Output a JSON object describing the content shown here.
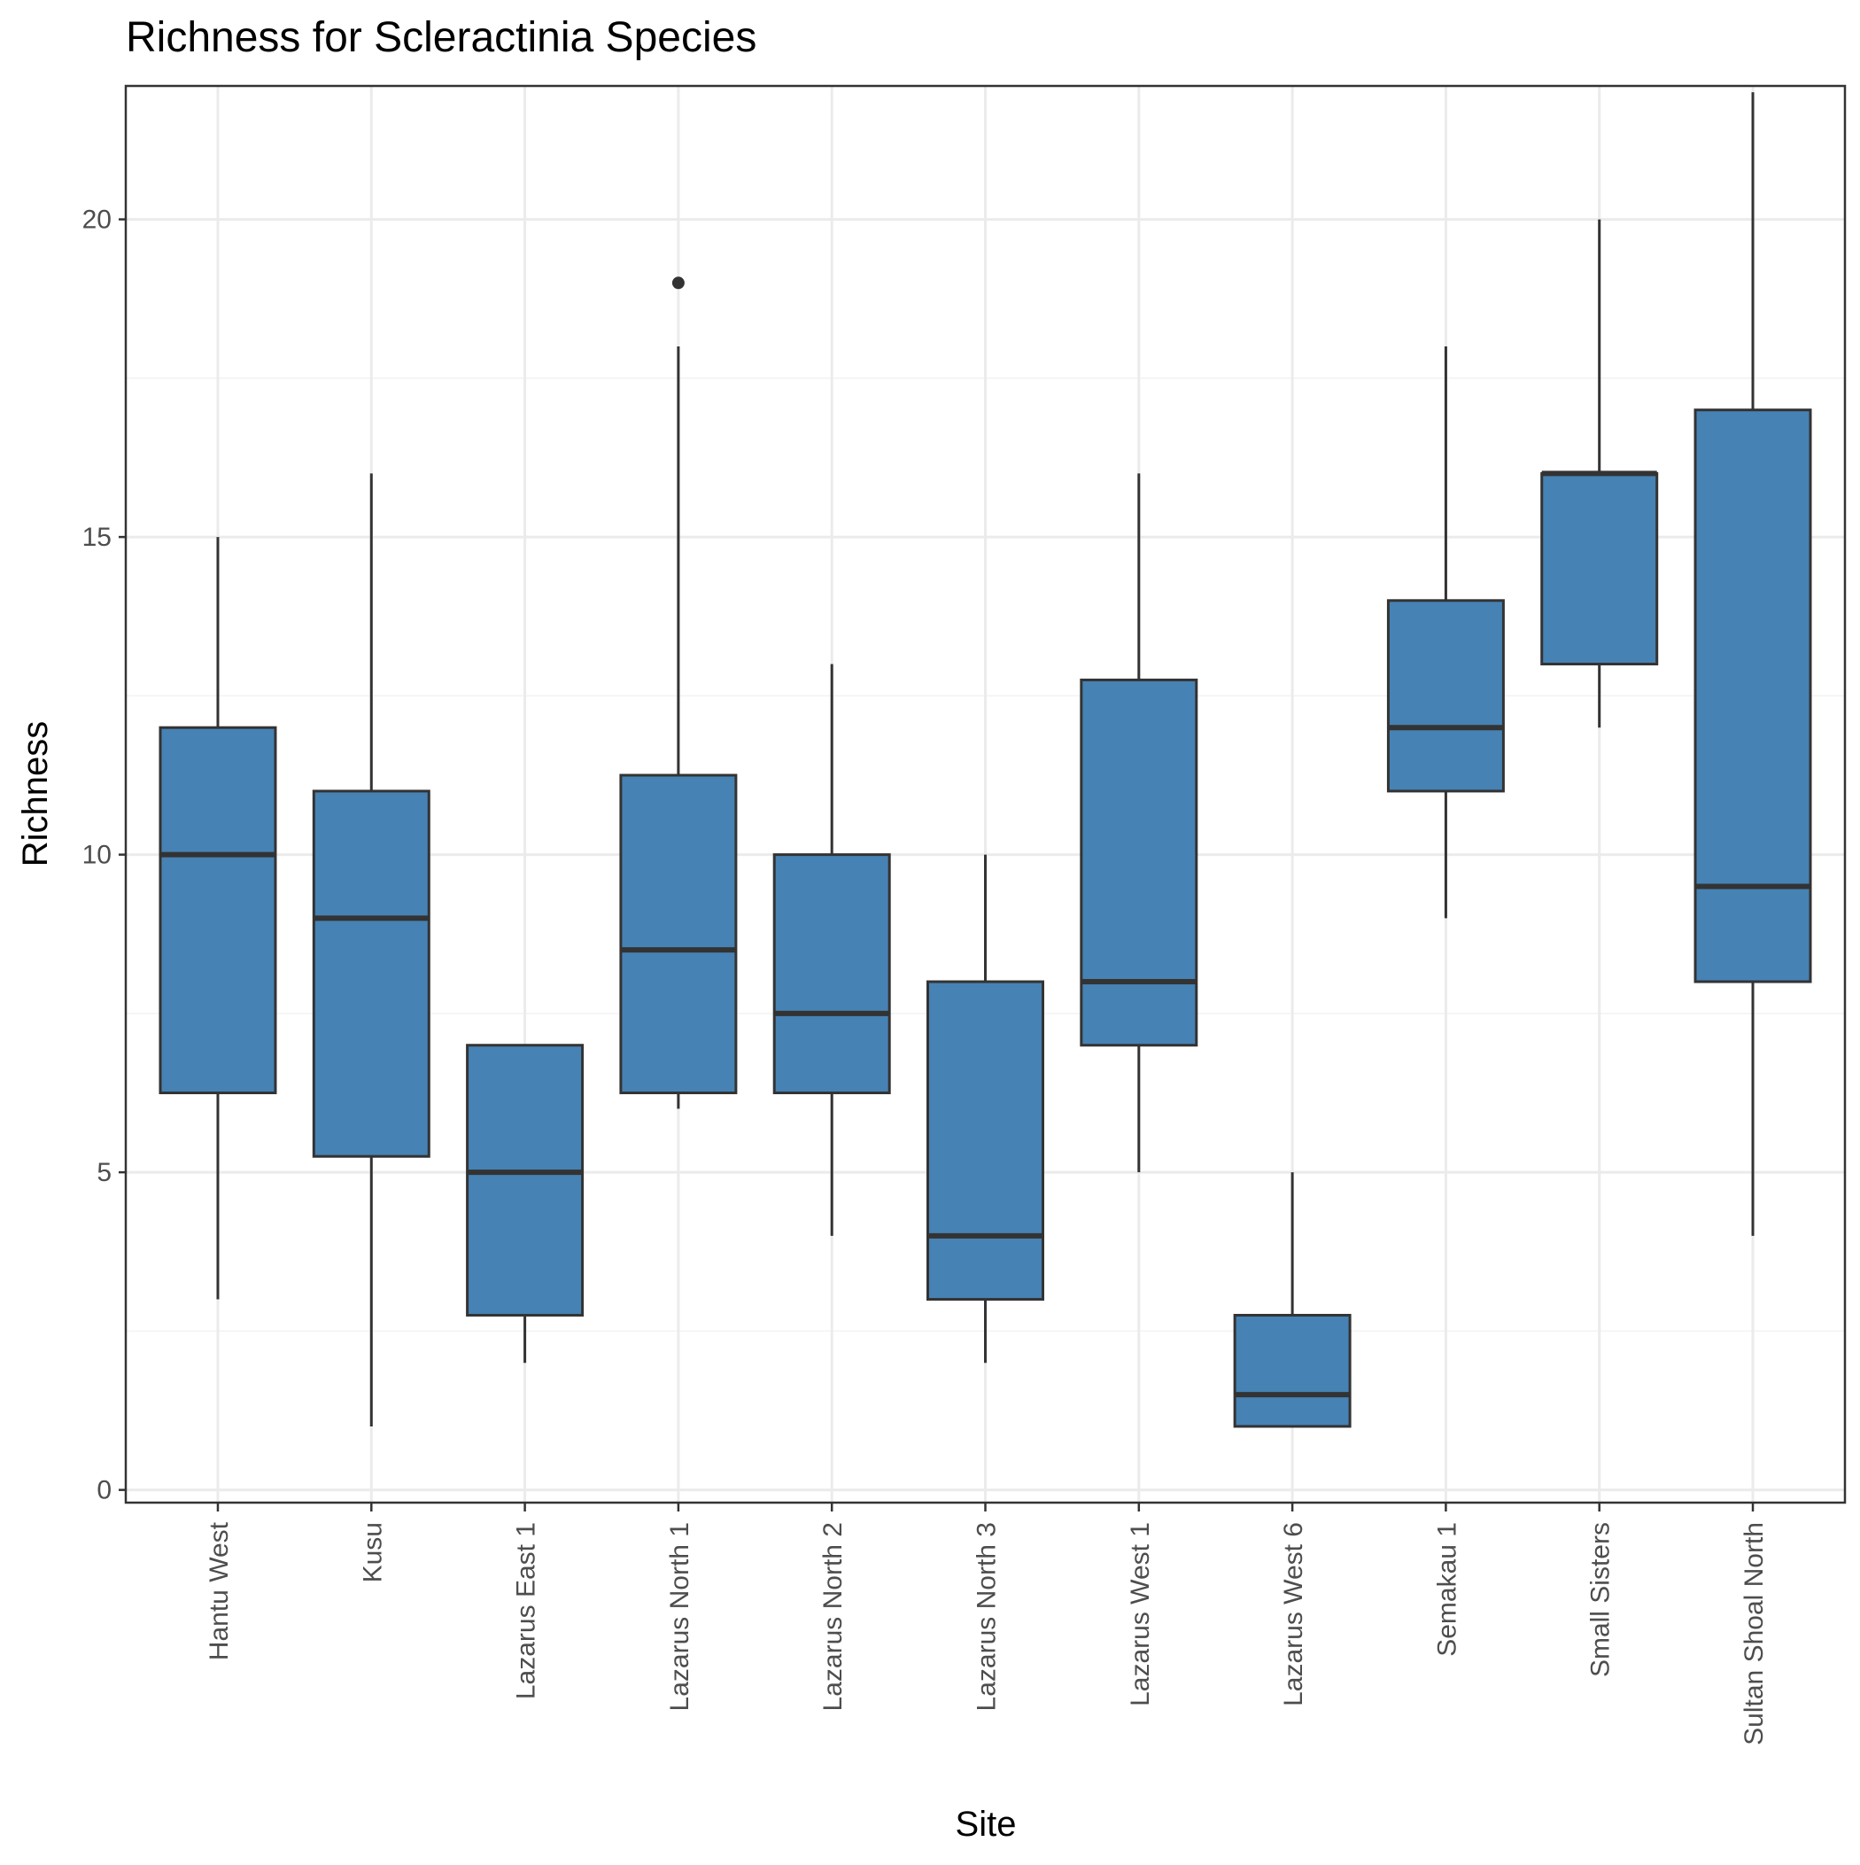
{
  "chart_data": {
    "type": "box",
    "title": "Richness for Scleractinia Species",
    "xlabel": "Site",
    "ylabel": "Richness",
    "ylim": [
      -0.2,
      22.1
    ],
    "yticks": [
      0,
      5,
      10,
      15,
      20
    ],
    "grid": true,
    "colors": {
      "box_fill": "#4682b4",
      "box_stroke": "#333333",
      "grid_major": "#ebebeb",
      "grid_minor": "#f2f2f2",
      "panel_border": "#333333"
    },
    "categories": [
      "Hantu West",
      "Kusu",
      "Lazarus East 1",
      "Lazarus North 1",
      "Lazarus North 2",
      "Lazarus North 3",
      "Lazarus West 1",
      "Lazarus West 6",
      "Semakau 1",
      "Small Sisters",
      "Sultan Shoal North"
    ],
    "boxes": [
      {
        "min": 3,
        "q1": 6.25,
        "median": 10,
        "q3": 12,
        "max": 15,
        "outliers": []
      },
      {
        "min": 1,
        "q1": 5.25,
        "median": 9,
        "q3": 11,
        "max": 16,
        "outliers": []
      },
      {
        "min": 2,
        "q1": 2.75,
        "median": 5,
        "q3": 7,
        "max": 7,
        "outliers": []
      },
      {
        "min": 6,
        "q1": 6.25,
        "median": 8.5,
        "q3": 11.25,
        "max": 18,
        "outliers": [
          19
        ]
      },
      {
        "min": 4,
        "q1": 6.25,
        "median": 7.5,
        "q3": 10,
        "max": 13,
        "outliers": []
      },
      {
        "min": 2,
        "q1": 3,
        "median": 4,
        "q3": 8,
        "max": 10,
        "outliers": []
      },
      {
        "min": 5,
        "q1": 7,
        "median": 8,
        "q3": 12.75,
        "max": 16,
        "outliers": []
      },
      {
        "min": 1,
        "q1": 1,
        "median": 1.5,
        "q3": 2.75,
        "max": 5,
        "outliers": []
      },
      {
        "min": 9,
        "q1": 11,
        "median": 12,
        "q3": 14,
        "max": 18,
        "outliers": []
      },
      {
        "min": 12,
        "q1": 13,
        "median": 16,
        "q3": 16,
        "max": 20,
        "outliers": []
      },
      {
        "min": 4,
        "q1": 8,
        "median": 9.5,
        "q3": 17,
        "max": 22,
        "outliers": []
      }
    ]
  }
}
